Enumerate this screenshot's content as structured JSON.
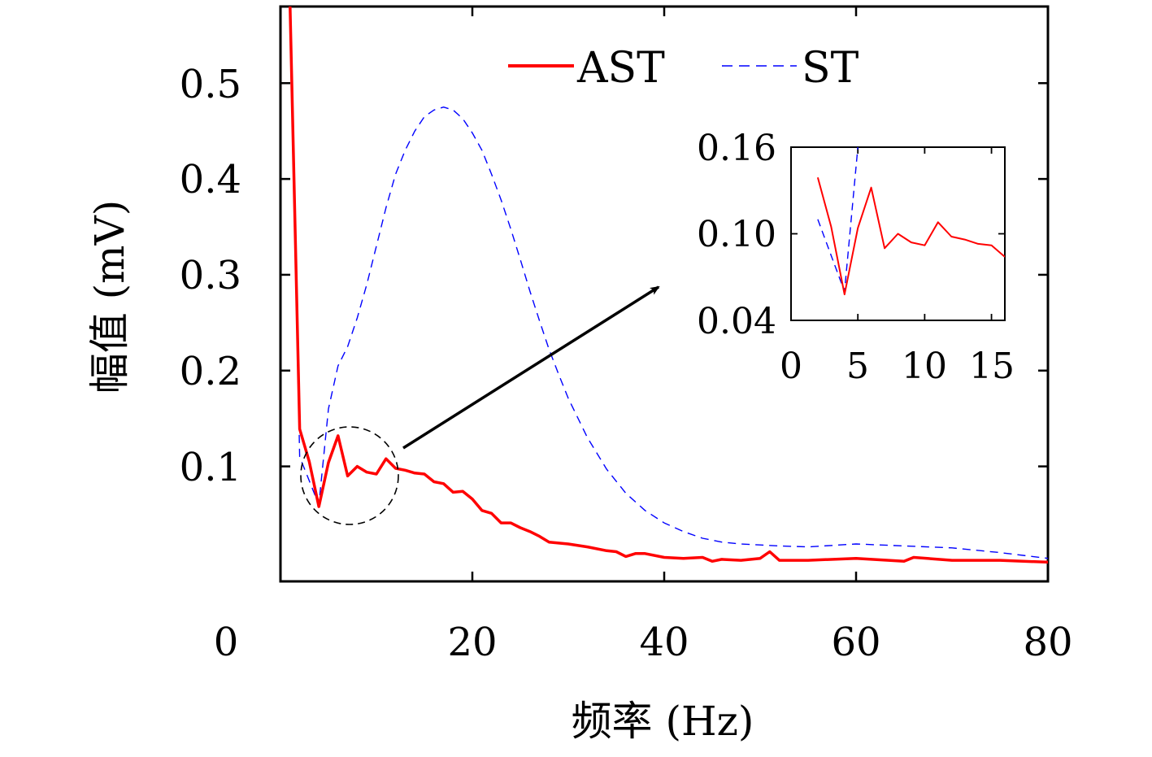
{
  "chart_data": [
    {
      "type": "line",
      "xlabel": "频率 (Hz)",
      "ylabel": "幅值 (mV)",
      "xlim": [
        0,
        80
      ],
      "ylim": [
        -0.02,
        0.58
      ],
      "x_ticks": [
        "0",
        "20",
        "40",
        "60",
        "80"
      ],
      "y_ticks": [
        "0.1",
        "0.2",
        "0.3",
        "0.4",
        "0.5"
      ],
      "legend": {
        "location": "top",
        "entries": [
          "AST",
          "ST"
        ]
      },
      "series": [
        {
          "name": "AST",
          "color": "#ff0000",
          "style": "solid",
          "x": [
            1,
            2,
            3,
            4,
            5,
            6,
            7,
            8,
            9,
            10,
            11,
            12,
            13,
            14,
            15,
            16,
            17,
            18,
            19,
            20,
            21,
            22,
            23,
            24,
            25,
            26,
            27,
            28,
            30,
            32,
            34,
            35,
            36,
            37,
            38,
            40,
            42,
            44,
            45,
            46,
            48,
            50,
            51,
            52,
            55,
            60,
            65,
            66,
            70,
            75,
            80
          ],
          "y": [
            0.58,
            0.139,
            0.105,
            0.058,
            0.104,
            0.132,
            0.09,
            0.1,
            0.094,
            0.092,
            0.108,
            0.098,
            0.096,
            0.093,
            0.092,
            0.084,
            0.082,
            0.073,
            0.074,
            0.066,
            0.054,
            0.051,
            0.041,
            0.041,
            0.036,
            0.032,
            0.027,
            0.021,
            0.019,
            0.016,
            0.012,
            0.011,
            0.006,
            0.009,
            0.009,
            0.005,
            0.004,
            0.005,
            0.001,
            0.003,
            0.002,
            0.004,
            0.011,
            0.002,
            0.002,
            0.004,
            0.001,
            0.005,
            0.002,
            0.002,
            0.0
          ]
        },
        {
          "name": "ST",
          "color": "#0000ff",
          "style": "dashed",
          "x": [
            1,
            2,
            3,
            4,
            5,
            6,
            7,
            8,
            9,
            10,
            11,
            12,
            13,
            14,
            15,
            16,
            17,
            18,
            19,
            20,
            21,
            22,
            23,
            24,
            25,
            26,
            27,
            28,
            29,
            30,
            32,
            34,
            36,
            38,
            40,
            42,
            44,
            46,
            48,
            50,
            52,
            55,
            60,
            65,
            70,
            75,
            80
          ],
          "y": [
            0.58,
            0.11,
            0.085,
            0.06,
            0.16,
            0.205,
            0.225,
            0.255,
            0.29,
            0.33,
            0.37,
            0.405,
            0.43,
            0.45,
            0.465,
            0.472,
            0.475,
            0.472,
            0.463,
            0.448,
            0.43,
            0.405,
            0.378,
            0.348,
            0.316,
            0.283,
            0.252,
            0.222,
            0.196,
            0.171,
            0.13,
            0.097,
            0.072,
            0.054,
            0.041,
            0.032,
            0.025,
            0.021,
            0.019,
            0.018,
            0.017,
            0.016,
            0.019,
            0.017,
            0.015,
            0.01,
            0.004
          ]
        }
      ]
    },
    {
      "type": "line",
      "xlim": [
        0,
        16
      ],
      "ylim": [
        0.04,
        0.16
      ],
      "x_ticks": [
        "0",
        "5",
        "10",
        "15"
      ],
      "y_ticks": [
        "0.04",
        "0.10",
        "0.16"
      ],
      "series": [
        {
          "name": "AST",
          "color": "#ff0000",
          "style": "solid",
          "x": [
            2,
            3,
            4,
            5,
            6,
            7,
            8,
            9,
            10,
            11,
            12,
            13,
            14,
            15,
            16
          ],
          "y": [
            0.139,
            0.105,
            0.058,
            0.104,
            0.132,
            0.09,
            0.1,
            0.094,
            0.092,
            0.108,
            0.098,
            0.096,
            0.093,
            0.092,
            0.084
          ]
        },
        {
          "name": "ST",
          "color": "#0000ff",
          "style": "dashed",
          "x": [
            2,
            3,
            4,
            5
          ],
          "y": [
            0.11,
            0.085,
            0.06,
            0.16
          ]
        }
      ]
    }
  ]
}
